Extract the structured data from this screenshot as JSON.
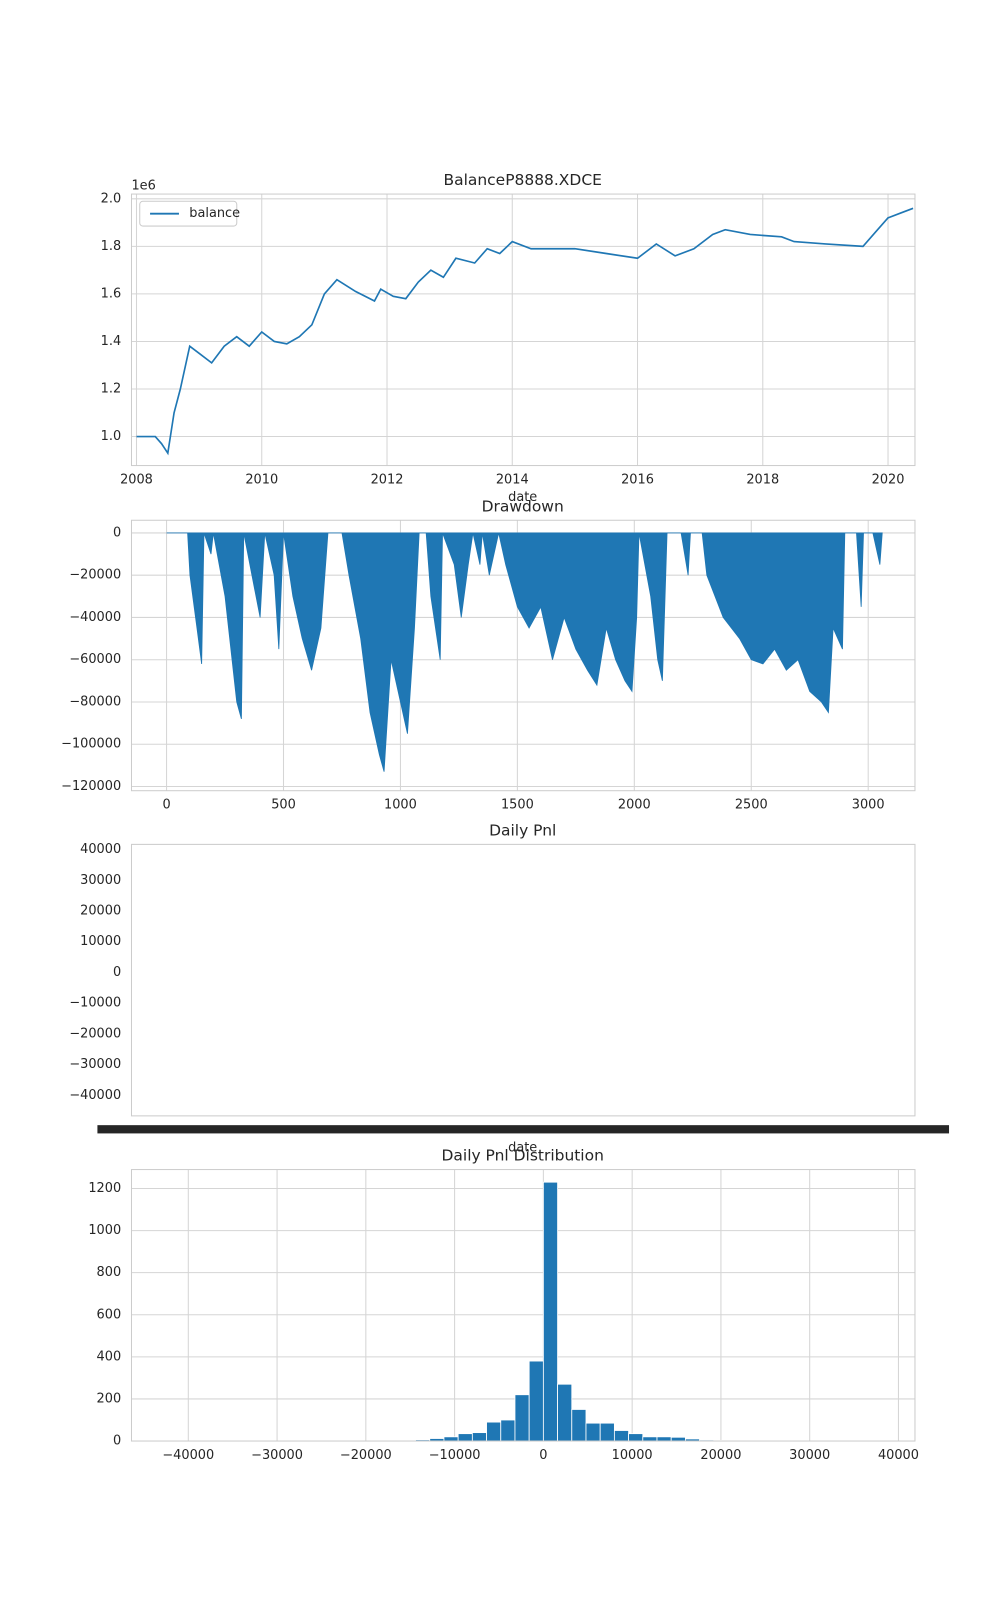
{
  "chart_data": [
    {
      "type": "line",
      "title": "BalanceP8888.XDCE",
      "xlabel": "date",
      "y_offset_label": "1e6",
      "grid": true,
      "legend": "upper left",
      "xlim": [
        2007.92,
        2020.43
      ],
      "xticks": [
        2008,
        2010,
        2012,
        2014,
        2016,
        2018,
        2020
      ],
      "ylim": [
        0.878,
        2.02
      ],
      "yticks": [
        {
          "value": 1.0,
          "label": "1.0"
        },
        1.2,
        1.4,
        1.6,
        1.8,
        {
          "value": 2.0,
          "label": "2.0"
        }
      ],
      "series": [
        {
          "name": "balance",
          "color": "#1f77b4",
          "x": [
            2008.0,
            2008.3,
            2008.4,
            2008.5,
            2008.6,
            2008.7,
            2008.85,
            2009.0,
            2009.2,
            2009.4,
            2009.6,
            2009.8,
            2010.0,
            2010.2,
            2010.4,
            2010.6,
            2010.8,
            2011.0,
            2011.2,
            2011.5,
            2011.8,
            2011.9,
            2012.1,
            2012.3,
            2012.5,
            2012.7,
            2012.9,
            2013.1,
            2013.4,
            2013.6,
            2013.8,
            2014.0,
            2014.3,
            2014.6,
            2015.0,
            2015.5,
            2016.0,
            2016.3,
            2016.6,
            2016.9,
            2017.2,
            2017.4,
            2017.8,
            2018.3,
            2018.5,
            2019.0,
            2019.6,
            2019.8,
            2020.0,
            2020.2,
            2020.4
          ],
          "values": [
            1.0,
            1.0,
            0.97,
            0.93,
            1.1,
            1.2,
            1.38,
            1.35,
            1.31,
            1.38,
            1.42,
            1.38,
            1.44,
            1.4,
            1.39,
            1.42,
            1.47,
            1.6,
            1.66,
            1.61,
            1.57,
            1.62,
            1.59,
            1.58,
            1.65,
            1.7,
            1.67,
            1.75,
            1.73,
            1.79,
            1.77,
            1.82,
            1.79,
            1.79,
            1.79,
            1.77,
            1.75,
            1.81,
            1.76,
            1.79,
            1.85,
            1.87,
            1.85,
            1.84,
            1.82,
            1.81,
            1.8,
            1.86,
            1.92,
            1.94,
            1.96
          ]
        }
      ]
    },
    {
      "type": "area",
      "title": "Drawdown",
      "grid": true,
      "xlim": [
        -150,
        3200
      ],
      "xticks": [
        0,
        500,
        1000,
        1500,
        2000,
        2500,
        3000
      ],
      "ylim": [
        -122000,
        6000
      ],
      "yticks": [
        {
          "value": -120000,
          "label": "−120000"
        },
        {
          "value": -100000,
          "label": "−100000"
        },
        {
          "value": -80000,
          "label": "−80000"
        },
        {
          "value": -60000,
          "label": "−60000"
        },
        {
          "value": -40000,
          "label": "−40000"
        },
        {
          "value": -20000,
          "label": "−20000"
        },
        0
      ],
      "series": [
        {
          "color": "#1f77b4",
          "x": [
            0,
            90,
            100,
            130,
            150,
            160,
            190,
            200,
            250,
            300,
            320,
            330,
            400,
            420,
            460,
            480,
            500,
            540,
            580,
            620,
            660,
            690,
            750,
            780,
            830,
            870,
            910,
            930,
            960,
            1000,
            1030,
            1060,
            1080,
            1110,
            1130,
            1170,
            1180,
            1230,
            1260,
            1290,
            1310,
            1340,
            1350,
            1380,
            1420,
            1450,
            1500,
            1550,
            1600,
            1650,
            1700,
            1750,
            1800,
            1840,
            1880,
            1920,
            1960,
            1990,
            2010,
            2020,
            2070,
            2100,
            2120,
            2140,
            2200,
            2230,
            2240,
            2290,
            2310,
            2380,
            2450,
            2500,
            2550,
            2600,
            2650,
            2700,
            2750,
            2800,
            2830,
            2850,
            2890,
            2900,
            2950,
            2970,
            2980,
            3020,
            3050,
            3060
          ],
          "values": [
            0,
            0,
            -20000,
            -45000,
            -62000,
            0,
            -10000,
            0,
            -30000,
            -80000,
            -88000,
            0,
            -40000,
            0,
            -20000,
            -55000,
            0,
            -30000,
            -50000,
            -65000,
            -45000,
            0,
            0,
            -20000,
            -50000,
            -85000,
            -105000,
            -113000,
            -60000,
            -80000,
            -95000,
            -45000,
            0,
            0,
            -30000,
            -60000,
            0,
            -15000,
            -40000,
            -15000,
            0,
            -15000,
            0,
            -20000,
            0,
            -15000,
            -35000,
            -45000,
            -35000,
            -60000,
            -40000,
            -55000,
            -65000,
            -72000,
            -45000,
            -60000,
            -70000,
            -75000,
            -40000,
            0,
            -30000,
            -60000,
            -70000,
            0,
            0,
            -20000,
            0,
            0,
            -20000,
            -40000,
            -50000,
            -60000,
            -62000,
            -55000,
            -65000,
            -60000,
            -75000,
            -80000,
            -85000,
            -45000,
            -55000,
            0,
            0,
            -35000,
            0,
            0,
            -15000,
            0
          ]
        }
      ]
    },
    {
      "type": "line",
      "title": "Daily Pnl",
      "xlabel": "date",
      "grid": false,
      "ylim": [
        -46700,
        41700
      ],
      "yticks": [
        {
          "value": -40000,
          "label": "−40000"
        },
        {
          "value": -30000,
          "label": "−30000"
        },
        {
          "value": -20000,
          "label": "−20000"
        },
        {
          "value": -10000,
          "label": "−10000"
        },
        0,
        10000,
        20000,
        30000,
        40000
      ],
      "series": []
    },
    {
      "type": "histogram",
      "title": "Daily Pnl Distribution",
      "grid": true,
      "color": "#1f77b4",
      "xlim": [
        -46400,
        41860
      ],
      "xticks": [
        {
          "value": -40000,
          "label": "−40000"
        },
        {
          "value": -30000,
          "label": "−30000"
        },
        {
          "value": -20000,
          "label": "−20000"
        },
        {
          "value": -10000,
          "label": "−10000"
        },
        0,
        10000,
        20000,
        30000,
        40000
      ],
      "ylim": [
        0,
        1290
      ],
      "yticks": [
        0,
        200,
        400,
        600,
        800,
        1000,
        1200
      ],
      "bins": [
        -40000,
        -38400,
        -36800,
        -35200,
        -33600,
        -32000,
        -30400,
        -28800,
        -27200,
        -25600,
        -24000,
        -22400,
        -20800,
        -19200,
        -17600,
        -16000,
        -14400,
        -12800,
        -11200,
        -9600,
        -8000,
        -6400,
        -4800,
        -3200,
        -1600,
        0,
        1600,
        3200,
        4800,
        6400,
        8000,
        9600,
        11200,
        12800,
        14400,
        16000,
        17600,
        19200,
        20800,
        22400,
        24000,
        25600,
        27200,
        28800,
        30400,
        32000,
        33600,
        35200,
        36800,
        38400,
        40000
      ],
      "values": [
        0,
        0,
        0,
        0,
        0,
        0,
        0,
        0,
        0,
        0,
        0,
        0,
        0,
        3,
        2,
        4,
        6,
        12,
        20,
        35,
        40,
        90,
        100,
        220,
        380,
        1230,
        270,
        150,
        85,
        85,
        50,
        35,
        20,
        20,
        18,
        10,
        5,
        3,
        0,
        0,
        0,
        0,
        0,
        0,
        0,
        0,
        0,
        0,
        0,
        0
      ]
    }
  ]
}
